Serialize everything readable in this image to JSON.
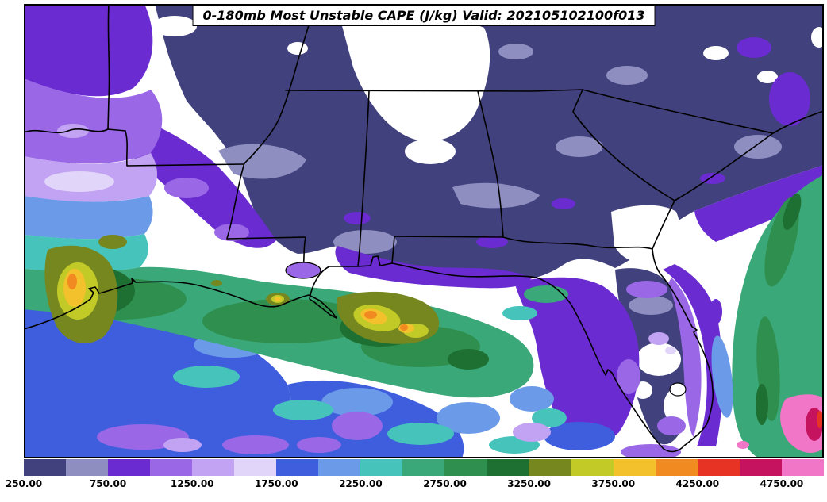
{
  "title": "0-180mb Most Unstable CAPE (J/kg) Valid: 202105102100f013",
  "chart_data": {
    "type": "heatmap",
    "subtype": "filled contour weather map",
    "title": "0-180mb Most Unstable CAPE (J/kg) Valid: 202105102100f013",
    "parameter": "Most Unstable CAPE",
    "layer": "0-180mb",
    "units": "J/kg",
    "valid_time": "202105102100f013",
    "forecast_hour": "f013",
    "region": "South-central and southeastern United States with the Gulf of Mexico and western Atlantic (Texas eastward through Louisiana, Mississippi, Alabama, Georgia, Florida to the Carolinas)",
    "grid": "off",
    "legend_position": "horizontal colorbar at bottom",
    "colorbar": {
      "units": "J/kg",
      "contour_interval": 250,
      "value_range": [
        250,
        5000
      ],
      "below_min_color": "#ffffff",
      "tick_values": [
        250,
        750,
        1250,
        1750,
        2250,
        2750,
        3250,
        3750,
        4250,
        4750
      ],
      "tick_labels": [
        "250.00",
        "750.00",
        "1250.00",
        "1750.00",
        "2250.00",
        "2750.00",
        "3250.00",
        "3750.00",
        "4250.00",
        "4750.00"
      ],
      "segment_levels": [
        250,
        500,
        750,
        1000,
        1250,
        1500,
        1750,
        2000,
        2250,
        2500,
        2750,
        3000,
        3250,
        3500,
        3750,
        4000,
        4250,
        4500,
        4750
      ],
      "segment_colors": [
        "#41417d",
        "#8e8ec0",
        "#6a2bd1",
        "#9a68e6",
        "#c2a2f2",
        "#e2d5fa",
        "#3f5ede",
        "#6b9ae8",
        "#46c4bc",
        "#3aa878",
        "#2e8f4e",
        "#1e7032",
        "#75871e",
        "#c2ca28",
        "#f2c12c",
        "#f28a22",
        "#e63323",
        "#c6135f",
        "#f276c8"
      ]
    },
    "field_summary": [
      {
        "region": "North-central interior (northern Mississippi/Alabama into Tennessee) and pockets of central Georgia and central Florida",
        "value_range_jkg": "below 250",
        "color": "white"
      },
      {
        "region": "Broad low-CAPE shield over Arkansas, Mississippi, Alabama, Georgia and the Carolinas",
        "value_range_jkg": "250-750",
        "color": "dark slate blue with gray-lavender mottling"
      },
      {
        "region": "Northwest corner (north Texas / Red River) banded gradient",
        "value_range_jkg": "750-2000",
        "color": "purple through pale lavender to light blue"
      },
      {
        "region": "East/central Texas, Louisiana and the north-central Gulf coast",
        "value_range_jkg": "2000-3000",
        "color": "teal and green"
      },
      {
        "region": "Maximum core over south-central Texas",
        "value_range_jkg": "3250-4250",
        "color": "olive/yellow/gold"
      },
      {
        "region": "Maximum cores over the southern Louisiana coast",
        "value_range_jkg": "3250-4250",
        "color": "gold/orange in dark green surroundings"
      },
      {
        "region": "Open southwestern Gulf of Mexico",
        "value_range_jkg": "1750-2250",
        "color": "royal blue with lavender streaks at the bottom edge"
      },
      {
        "region": "Eastern Gulf of Mexico and Florida peninsula",
        "value_range_jkg": "750-1500",
        "color": "purple/lavender with white pockets"
      },
      {
        "region": "Gulf Stream ribbon off the southeast Atlantic coast",
        "value_range_jkg": "2250-3000",
        "color": "diagonal green band"
      },
      {
        "region": "Extreme bottom-right corner (Atlantic southeast of Florida)",
        "value_range_jkg": "4250-5000",
        "color": "magenta/pink maximum"
      }
    ],
    "map_overlays": [
      "US state borders",
      "Gulf and Atlantic coastline",
      "Mississippi River",
      "Lake Pontchartrain",
      "Lake Okeechobee",
      "Mobile Bay",
      "Galveston Bay",
      "Mississippi River delta",
      "Tampa Bay",
      "Cape Canaveral",
      "Florida peninsula"
    ]
  }
}
